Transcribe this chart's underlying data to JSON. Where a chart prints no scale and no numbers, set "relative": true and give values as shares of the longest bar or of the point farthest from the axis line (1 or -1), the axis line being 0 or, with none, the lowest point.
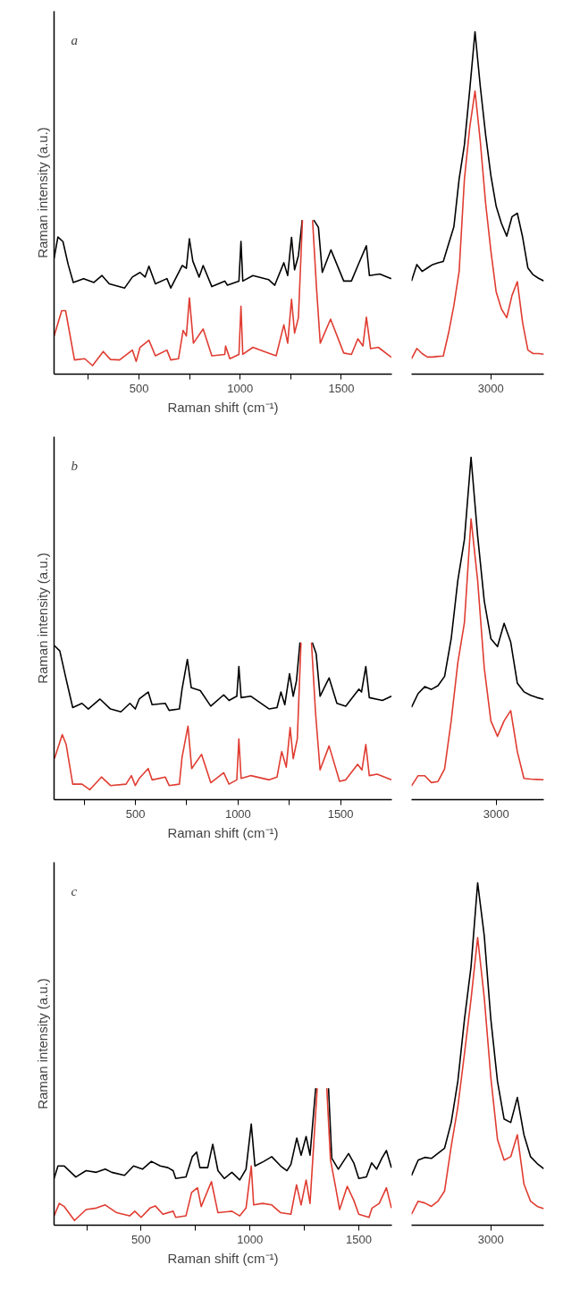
{
  "chart_data": [
    {
      "type": "line",
      "relative": true,
      "ylabel": "Raman intensity (a.u.)",
      "xlabel": "Raman shift (cm⁻¹)",
      "annotations": [
        "a"
      ],
      "xlim": [
        80,
        1750
      ],
      "xticks": [
        {
          "value": 250,
          "label": null
        },
        500,
        {
          "value": 750,
          "label": null
        },
        1000,
        {
          "value": 1250,
          "label": null
        },
        1500
      ],
      "series": [
        {
          "color": "#000000",
          "x": [
            80,
            99,
            124,
            150,
            175,
            226,
            277,
            317,
            353,
            429,
            467,
            505,
            530,
            549,
            581,
            638,
            657,
            714,
            734,
            749,
            766,
            797,
            817,
            860,
            924,
            937,
            994,
            1004,
            1013,
            1063,
            1140,
            1171,
            1216,
            1235,
            1254,
            1269,
            1288,
            1307,
            1335,
            1364,
            1387,
            1406,
            1449,
            1512,
            1550,
            1582,
            1624,
            1639,
            1690,
            1747
          ],
          "values": [
            0.75,
            0.89,
            0.86,
            0.71,
            0.595,
            0.62,
            0.595,
            0.64,
            0.586,
            0.559,
            0.63,
            0.66,
            0.63,
            0.7,
            0.586,
            0.62,
            0.559,
            0.705,
            0.687,
            0.879,
            0.733,
            0.63,
            0.705,
            0.568,
            0.604,
            0.577,
            0.604,
            0.861,
            0.604,
            0.64,
            0.614,
            0.577,
            0.723,
            0.64,
            0.888,
            0.677,
            0.769,
            1.0,
            null,
            1.0,
            0.952,
            0.66,
            0.806,
            0.604,
            0.604,
            0.705,
            0.833,
            0.64,
            0.65,
            0.62
          ]
        },
        {
          "color": "#e03c31",
          "x": [
            80,
            118,
            137,
            181,
            232,
            270,
            323,
            359,
            404,
            467,
            486,
            505,
            549,
            581,
            638,
            657,
            695,
            718,
            734,
            749,
            769,
            817,
            860,
            924,
            928,
            949,
            994,
            1004,
            1013,
            1063,
            1140,
            1178,
            1216,
            1235,
            1254,
            1269,
            1288,
            1308,
            1333,
            1358,
            1377,
            1396,
            1447,
            1512,
            1550,
            1582,
            1607,
            1624,
            1645,
            1683,
            1747
          ],
          "values": [
            0.247,
            0.412,
            0.412,
            0.092,
            0.1,
            0.055,
            0.147,
            0.095,
            0.092,
            0.156,
            0.082,
            0.174,
            0.22,
            0.119,
            0.156,
            0.092,
            0.1,
            0.284,
            0.247,
            0.495,
            0.201,
            0.293,
            0.119,
            0.128,
            0.183,
            0.1,
            0.128,
            0.44,
            0.128,
            0.174,
            0.137,
            0.119,
            0.32,
            0.201,
            0.485,
            0.266,
            0.366,
            1.0,
            null,
            1.0,
            0.568,
            0.201,
            0.357,
            0.137,
            0.128,
            0.229,
            0.183,
            0.37,
            0.165,
            0.174,
            0.11
          ]
        }
      ]
    },
    {
      "type": "line",
      "relative": true,
      "annotations": [
        "3000"
      ],
      "categories": [
        null,
        null,
        null,
        null,
        null,
        null,
        null,
        null,
        null,
        null,
        null,
        null,
        null,
        null,
        null,
        null,
        null,
        null,
        null,
        null,
        null,
        null,
        null,
        null,
        null,
        null
      ],
      "series": [
        {
          "color": "#000000",
          "values": [
            0.272,
            0.32,
            0.3,
            0.31,
            0.32,
            0.325,
            0.329,
            0.38,
            0.43,
            0.57,
            0.67,
            0.83,
            1.0,
            0.84,
            0.7,
            0.58,
            0.49,
            0.44,
            0.403,
            0.46,
            0.47,
            0.4,
            0.31,
            0.29,
            0.28,
            0.272
          ]
        },
        {
          "color": "#e03c31",
          "values": [
            0.045,
            0.075,
            0.06,
            0.05,
            0.05,
            0.052,
            0.053,
            0.12,
            0.2,
            0.3,
            0.57,
            0.72,
            0.827,
            0.68,
            0.5,
            0.36,
            0.24,
            0.19,
            0.165,
            0.23,
            0.27,
            0.15,
            0.07,
            0.06,
            0.06,
            0.058
          ]
        }
      ]
    },
    {
      "type": "line",
      "relative": true,
      "ylabel": "Raman intensity (a.u.)",
      "xlabel": "Raman shift (cm⁻¹)",
      "annotations": [
        "b"
      ],
      "xlim": [
        103,
        1750
      ],
      "xticks": [
        {
          "value": 250,
          "label": null
        },
        500,
        {
          "value": 750,
          "label": null
        },
        1000,
        {
          "value": 1250,
          "label": null
        },
        1500
      ],
      "series": [
        {
          "color": "#000000",
          "x": [
            105,
            131,
            162,
            194,
            239,
            270,
            327,
            378,
            429,
            473,
            499,
            518,
            562,
            581,
            645,
            664,
            714,
            727,
            753,
            772,
            816,
            867,
            930,
            956,
            994,
            1004,
            1015,
            1063,
            1152,
            1190,
            1209,
            1228,
            1251,
            1269,
            1285,
            1302,
            1332,
            1362,
            1381,
            1400,
            1444,
            1482,
            1525,
            1589,
            1602,
            1623,
            1640,
            1704,
            1748
          ],
          "values": [
            0.98,
            0.946,
            0.766,
            0.586,
            0.613,
            0.577,
            0.64,
            0.577,
            0.559,
            0.613,
            0.577,
            0.64,
            0.685,
            0.604,
            0.613,
            0.568,
            0.577,
            0.703,
            0.892,
            0.712,
            0.694,
            0.595,
            0.667,
            0.631,
            0.658,
            0.847,
            0.649,
            0.658,
            0.577,
            0.586,
            0.685,
            0.604,
            0.802,
            0.658,
            0.757,
            1.0,
            null,
            1.0,
            0.928,
            0.658,
            0.775,
            0.613,
            0.595,
            0.703,
            0.685,
            0.847,
            0.649,
            0.631,
            0.658
          ]
        },
        {
          "color": "#e03c31",
          "x": [
            105,
            143,
            162,
            194,
            239,
            277,
            334,
            378,
            454,
            480,
            499,
            518,
            562,
            581,
            645,
            664,
            714,
            727,
            756,
            774,
            822,
            867,
            930,
            956,
            994,
            1004,
            1015,
            1063,
            1152,
            1190,
            1213,
            1235,
            1254,
            1269,
            1289,
            1307,
            1332,
            1358,
            1378,
            1400,
            1444,
            1495,
            1525,
            1583,
            1604,
            1623,
            1640,
            1678,
            1748
          ],
          "values": [
            0.261,
            0.414,
            0.351,
            0.099,
            0.099,
            0.063,
            0.144,
            0.09,
            0.099,
            0.153,
            0.09,
            0.135,
            0.198,
            0.126,
            0.144,
            0.09,
            0.099,
            0.27,
            0.468,
            0.198,
            0.288,
            0.108,
            0.171,
            0.099,
            0.126,
            0.387,
            0.135,
            0.153,
            0.126,
            0.144,
            0.306,
            0.207,
            0.459,
            0.261,
            0.387,
            1.0,
            null,
            1.0,
            0.55,
            0.189,
            0.342,
            0.117,
            0.126,
            0.225,
            0.189,
            0.351,
            0.153,
            0.162,
            0.126
          ]
        }
      ]
    },
    {
      "type": "line",
      "relative": true,
      "annotations": [
        "3000"
      ],
      "categories": [
        null,
        null,
        null,
        null,
        null,
        null,
        null,
        null,
        null,
        null,
        null,
        null,
        null,
        null,
        null,
        null,
        null,
        null,
        null,
        null,
        null
      ],
      "series": [
        {
          "color": "#000000",
          "values": [
            0.27,
            0.31,
            0.33,
            0.322,
            0.333,
            0.36,
            0.47,
            0.64,
            0.76,
            1.0,
            0.77,
            0.58,
            0.47,
            0.447,
            0.515,
            0.46,
            0.34,
            0.315,
            0.305,
            0.298,
            0.293
          ]
        },
        {
          "color": "#e03c31",
          "values": [
            0.04,
            0.07,
            0.07,
            0.05,
            0.053,
            0.09,
            0.23,
            0.4,
            0.517,
            0.82,
            0.64,
            0.384,
            0.23,
            0.185,
            0.23,
            0.26,
            0.14,
            0.062,
            0.06,
            0.059,
            0.058
          ]
        }
      ]
    },
    {
      "type": "line",
      "relative": true,
      "ylabel": "Raman intensity (a.u.)",
      "xlabel": "Raman shift (cm⁻¹)",
      "annotations": [
        "c"
      ],
      "xlim": [
        100,
        1652
      ],
      "xticks": [
        {
          "value": 250,
          "label": null
        },
        500,
        {
          "value": 750,
          "label": null
        },
        1000,
        {
          "value": 1250,
          "label": null
        },
        1500
      ],
      "series": [
        {
          "color": "#000000",
          "x": [
            100,
            118,
            147,
            200,
            247,
            294,
            335,
            365,
            424,
            465,
            506,
            547,
            588,
            623,
            647,
            659,
            706,
            735,
            755,
            770,
            806,
            829,
            853,
            882,
            917,
            953,
            982,
            1006,
            1023,
            1064,
            1100,
            1141,
            1170,
            1188,
            1215,
            1235,
            1258,
            1276,
            1302,
            1331,
            1361,
            1376,
            1406,
            1453,
            1477,
            1500,
            1535,
            1559,
            1582,
            1606,
            1627,
            1650
          ],
          "values": [
            0.341,
            0.432,
            0.432,
            0.352,
            0.398,
            0.386,
            0.409,
            0.386,
            0.364,
            0.432,
            0.409,
            0.466,
            0.432,
            0.42,
            0.398,
            0.341,
            0.352,
            0.5,
            0.534,
            0.42,
            0.42,
            0.591,
            0.398,
            0.341,
            0.386,
            0.33,
            0.409,
            0.739,
            0.432,
            0.466,
            0.5,
            0.432,
            0.398,
            0.443,
            0.636,
            0.511,
            0.648,
            0.511,
            1.0,
            null,
            1.0,
            0.489,
            0.409,
            0.523,
            0.455,
            0.341,
            0.352,
            0.455,
            0.409,
            0.489,
            0.545,
            0.42
          ]
        },
        {
          "color": "#e03c31",
          "x": [
            100,
            124,
            147,
            194,
            247,
            294,
            335,
            388,
            447,
            471,
            500,
            541,
            565,
            600,
            647,
            659,
            706,
            732,
            759,
            776,
            823,
            853,
            917,
            953,
            982,
            1006,
            1017,
            1058,
            1100,
            1141,
            1188,
            1214,
            1235,
            1258,
            1276,
            1309,
            1331,
            1353,
            1370,
            1394,
            1412,
            1447,
            1477,
            1500,
            1547,
            1561,
            1594,
            1627,
            1650
          ],
          "values": [
            0.068,
            0.159,
            0.136,
            0.034,
            0.114,
            0.125,
            0.148,
            0.091,
            0.068,
            0.102,
            0.057,
            0.125,
            0.141,
            0.08,
            0.102,
            0.057,
            0.068,
            0.239,
            0.273,
            0.136,
            0.318,
            0.091,
            0.102,
            0.068,
            0.125,
            0.432,
            0.148,
            0.159,
            0.148,
            0.091,
            0.08,
            0.295,
            0.148,
            0.33,
            0.159,
            1.0,
            null,
            1.0,
            0.477,
            0.273,
            0.114,
            0.284,
            0.182,
            0.08,
            0.057,
            0.125,
            0.159,
            0.273,
            0.125
          ]
        }
      ]
    },
    {
      "type": "line",
      "relative": true,
      "annotations": [
        "3000"
      ],
      "categories": [
        null,
        null,
        null,
        null,
        null,
        null,
        null,
        null,
        null,
        null,
        null,
        null,
        null,
        null,
        null,
        null,
        null,
        null,
        null,
        null,
        null
      ],
      "series": [
        {
          "color": "#000000",
          "values": [
            0.145,
            0.19,
            0.198,
            0.195,
            0.21,
            0.225,
            0.3,
            0.42,
            0.6,
            0.755,
            1.0,
            0.845,
            0.6,
            0.42,
            0.31,
            0.3,
            0.373,
            0.264,
            0.2,
            0.18,
            0.165
          ]
        },
        {
          "color": "#e03c31",
          "values": [
            0.032,
            0.07,
            0.065,
            0.055,
            0.07,
            0.1,
            0.23,
            0.345,
            0.5,
            0.66,
            0.84,
            0.664,
            0.43,
            0.25,
            0.19,
            0.2,
            0.264,
            0.12,
            0.07,
            0.055,
            0.048
          ]
        }
      ]
    }
  ]
}
